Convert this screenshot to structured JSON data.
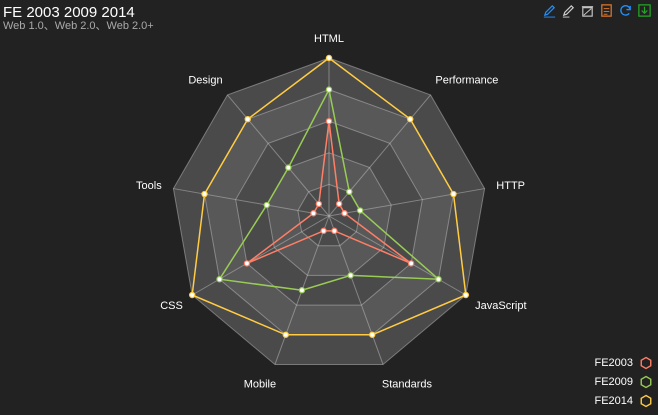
{
  "title": "FE 2003 2009 2014",
  "subtitle": "Web 1.0、Web 2.0、Web 2.0+",
  "toolbox": {
    "icons": [
      "mark-icon",
      "mark-undo-icon",
      "mark-clear-icon",
      "data-view-icon",
      "restore-icon",
      "save-image-icon"
    ],
    "colors": [
      "#1e90ff",
      "#cccccc",
      "#cccccc",
      "#e0782a",
      "#1e90ff",
      "#22aa22"
    ]
  },
  "colors": {
    "background": "#222222",
    "split_area_a": "#4a4a4a",
    "split_area_b": "#585858",
    "split_line": "#cccccc"
  },
  "chart_data": {
    "type": "radar",
    "title": "FE 2003 2009 2014",
    "subtitle": "Web 1.0、Web 2.0、Web 2.0+",
    "indicators": [
      {
        "name": "HTML",
        "max": 10
      },
      {
        "name": "Performance",
        "max": 10
      },
      {
        "name": "HTTP",
        "max": 10
      },
      {
        "name": "JavaScript",
        "max": 10
      },
      {
        "name": "Standards",
        "max": 10
      },
      {
        "name": "Mobile",
        "max": 10
      },
      {
        "name": "CSS",
        "max": 10
      },
      {
        "name": "Tools",
        "max": 10
      },
      {
        "name": "Design",
        "max": 10
      }
    ],
    "series": [
      {
        "name": "FE2003",
        "color": "#ff7f66",
        "values": [
          6,
          1,
          1,
          6,
          1,
          1,
          6,
          1,
          1
        ]
      },
      {
        "name": "FE2009",
        "color": "#99cc55",
        "values": [
          8,
          2,
          2,
          8,
          4,
          5,
          8,
          4,
          4
        ]
      },
      {
        "name": "FE2014",
        "color": "#ffcc44",
        "values": [
          10,
          8,
          8,
          10,
          8,
          8,
          10,
          8,
          8
        ]
      }
    ],
    "split_number": 5,
    "legend": "bottom-right"
  }
}
